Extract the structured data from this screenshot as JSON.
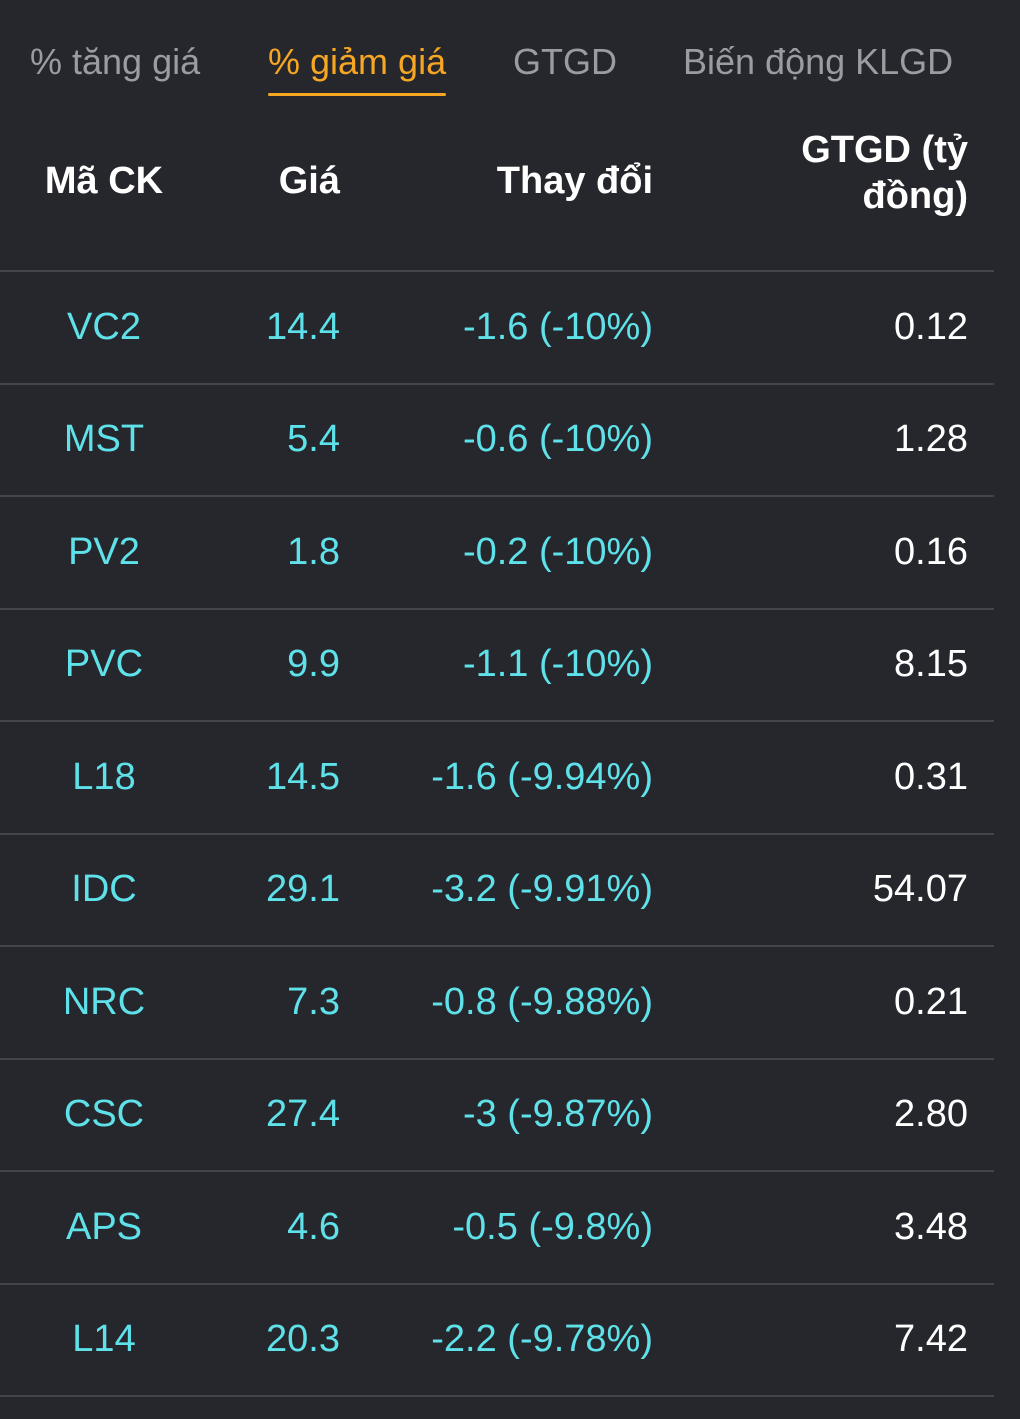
{
  "tabs": [
    {
      "label": "% tăng giá",
      "active": false
    },
    {
      "label": "% giảm giá",
      "active": true
    },
    {
      "label": "GTGD",
      "active": false
    },
    {
      "label": "Biến động KLGD",
      "active": false
    }
  ],
  "table": {
    "headers": {
      "code": "Mã CK",
      "price": "Giá",
      "change": "Thay đổi",
      "value": "GTGD (tỷ đồng)"
    },
    "rows": [
      {
        "code": "VC2",
        "price": "14.4",
        "change": "-1.6 (-10%)",
        "value": "0.12"
      },
      {
        "code": "MST",
        "price": "5.4",
        "change": "-0.6 (-10%)",
        "value": "1.28"
      },
      {
        "code": "PV2",
        "price": "1.8",
        "change": "-0.2 (-10%)",
        "value": "0.16"
      },
      {
        "code": "PVC",
        "price": "9.9",
        "change": "-1.1 (-10%)",
        "value": "8.15"
      },
      {
        "code": "L18",
        "price": "14.5",
        "change": "-1.6 (-9.94%)",
        "value": "0.31"
      },
      {
        "code": "IDC",
        "price": "29.1",
        "change": "-3.2 (-9.91%)",
        "value": "54.07"
      },
      {
        "code": "NRC",
        "price": "7.3",
        "change": "-0.8 (-9.88%)",
        "value": "0.21"
      },
      {
        "code": "CSC",
        "price": "27.4",
        "change": "-3 (-9.87%)",
        "value": "2.80"
      },
      {
        "code": "APS",
        "price": "4.6",
        "change": "-0.5 (-9.8%)",
        "value": "3.48"
      },
      {
        "code": "L14",
        "price": "20.3",
        "change": "-2.2 (-9.78%)",
        "value": "7.42"
      }
    ]
  },
  "colors": {
    "background": "#26272c",
    "accent": "#f5a623",
    "cyan": "#5fe1ea",
    "tab_inactive": "#9b9ca1",
    "divider": "#44454b"
  }
}
